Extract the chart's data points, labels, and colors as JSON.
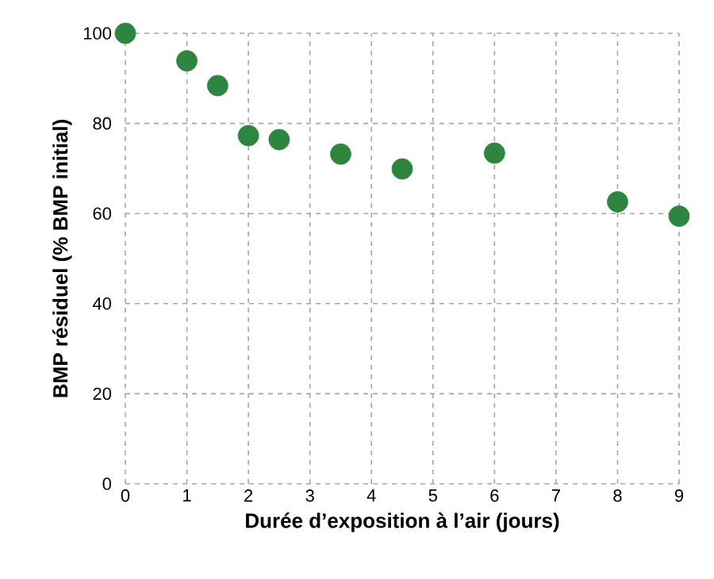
{
  "chart_data": {
    "type": "scatter",
    "xlabel": "Durée d’exposition à l’air (jours)",
    "ylabel": "BMP résiduel (% BMP initial)",
    "x": [
      0,
      1,
      1.5,
      2,
      2.5,
      3.5,
      4.5,
      6,
      8,
      9
    ],
    "values": [
      100,
      93.9,
      88.4,
      77.3,
      76.4,
      73.2,
      69.9,
      73.4,
      62.6,
      59.4
    ],
    "color": "#2e8540",
    "xlim": [
      0,
      9
    ],
    "ylim": [
      0,
      100
    ],
    "xticks": [
      0,
      1,
      2,
      3,
      4,
      5,
      6,
      7,
      8,
      9
    ],
    "yticks": [
      0,
      20,
      40,
      60,
      80,
      100
    ],
    "grid": true
  }
}
